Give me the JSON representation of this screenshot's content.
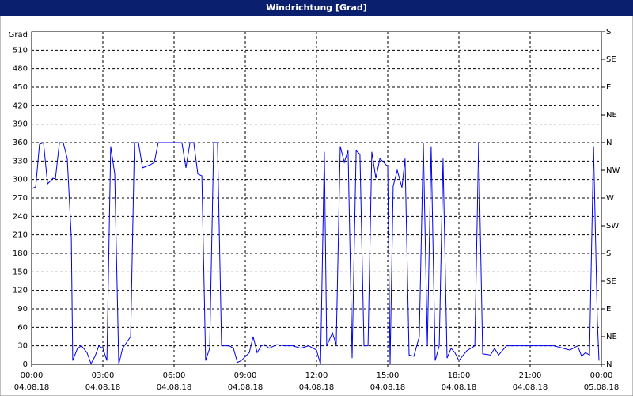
{
  "chart_data": {
    "type": "line",
    "title": "Windrichtung [Grad]",
    "ylabel": "Grad",
    "color": "#0000ee",
    "grid": true,
    "xlim": [
      0,
      24
    ],
    "xticks": [
      {
        "value": 0,
        "label": "00:00"
      },
      {
        "value": 3,
        "label": "03:00"
      },
      {
        "value": 6,
        "label": "06:00"
      },
      {
        "value": 9,
        "label": "09:00"
      },
      {
        "value": 12,
        "label": "12:00"
      },
      {
        "value": 15,
        "label": "15:00"
      },
      {
        "value": 18,
        "label": "18:00"
      },
      {
        "value": 21,
        "label": "21:00"
      },
      {
        "value": 24,
        "label": "00:00"
      }
    ],
    "xtick_dates": [
      "04.08.18",
      "04.08.18",
      "04.08.18",
      "04.08.18",
      "04.08.18",
      "04.08.18",
      "04.08.18",
      "04.08.18",
      "05.08.18"
    ],
    "ylim": [
      0,
      540
    ],
    "yticks": [
      0,
      30,
      60,
      90,
      120,
      150,
      180,
      210,
      240,
      270,
      300,
      330,
      360,
      390,
      420,
      450,
      480,
      510
    ],
    "y2lim": [
      0,
      540
    ],
    "y2ticks": [
      {
        "value": 0,
        "label": "N"
      },
      {
        "value": 45,
        "label": "NE"
      },
      {
        "value": 90,
        "label": "E"
      },
      {
        "value": 135,
        "label": "SE"
      },
      {
        "value": 180,
        "label": "S"
      },
      {
        "value": 225,
        "label": "SW"
      },
      {
        "value": 270,
        "label": "W"
      },
      {
        "value": 315,
        "label": "NW"
      },
      {
        "value": 360,
        "label": "N"
      },
      {
        "value": 405,
        "label": "NE"
      },
      {
        "value": 450,
        "label": "E"
      },
      {
        "value": 495,
        "label": "SE"
      },
      {
        "value": 540,
        "label": "S"
      }
    ],
    "x": [
      0,
      0.17,
      0.33,
      0.5,
      0.67,
      0.9,
      1.0,
      1.17,
      1.33,
      1.5,
      1.67,
      1.73,
      1.93,
      2.1,
      2.33,
      2.5,
      2.67,
      2.83,
      3.0,
      3.17,
      3.33,
      3.5,
      3.67,
      3.83,
      4.17,
      4.33,
      4.5,
      4.67,
      5.0,
      5.17,
      5.33,
      6.33,
      6.5,
      6.67,
      6.83,
      7.0,
      7.17,
      7.33,
      7.5,
      7.67,
      7.83,
      8.0,
      8.33,
      8.5,
      8.67,
      8.83,
      9.17,
      9.33,
      9.5,
      9.67,
      9.83,
      10.0,
      10.33,
      10.67,
      11.0,
      11.33,
      11.67,
      12.0,
      12.17,
      12.33,
      12.43,
      12.67,
      12.83,
      13.0,
      13.17,
      13.33,
      13.5,
      13.67,
      13.83,
      14.0,
      14.17,
      14.33,
      14.5,
      14.67,
      14.83,
      15.0,
      15.1,
      15.23,
      15.4,
      15.6,
      15.73,
      15.9,
      16.1,
      16.33,
      16.5,
      16.67,
      16.83,
      17.0,
      17.17,
      17.33,
      17.5,
      17.67,
      17.83,
      18.0,
      18.33,
      18.5,
      18.67,
      18.83,
      19.0,
      19.33,
      19.5,
      19.67,
      20.0,
      20.67,
      21.33,
      22.0,
      22.67,
      23.0,
      23.17,
      23.33,
      23.5,
      23.67,
      23.83,
      23.9
    ],
    "values": [
      285,
      288,
      357,
      360,
      293,
      302,
      301,
      360,
      360,
      334,
      206,
      6,
      26,
      30,
      19,
      1,
      13,
      30,
      26,
      6,
      354,
      309,
      0,
      26,
      45,
      360,
      360,
      319,
      324,
      328,
      360,
      360,
      319,
      360,
      360,
      309,
      306,
      6,
      26,
      360,
      360,
      30,
      30,
      26,
      3,
      6,
      19,
      45,
      19,
      30,
      32,
      26,
      32,
      30,
      30,
      26,
      30,
      23,
      0,
      345,
      30,
      51,
      32,
      354,
      328,
      347,
      10,
      347,
      341,
      30,
      30,
      345,
      302,
      334,
      328,
      321,
      0,
      289,
      315,
      287,
      334,
      15,
      13,
      45,
      360,
      30,
      354,
      6,
      30,
      334,
      10,
      26,
      19,
      6,
      22,
      26,
      30,
      360,
      17,
      15,
      26,
      15,
      30,
      30,
      30,
      30,
      23,
      30,
      13,
      19,
      15,
      354,
      71,
      6
    ]
  }
}
